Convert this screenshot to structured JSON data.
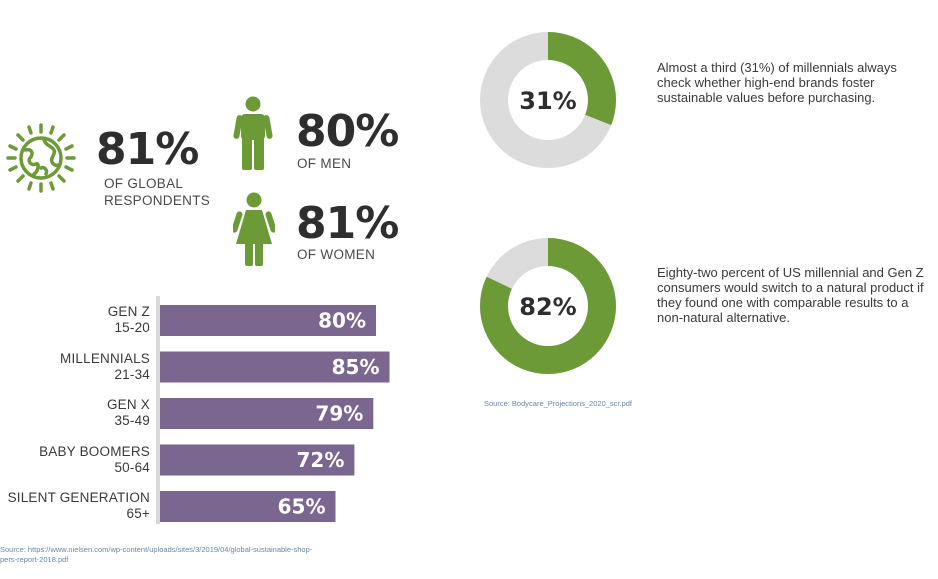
{
  "colors": {
    "green": "#6c9a36",
    "purple": "#7b6690",
    "donut_gray": "#dcdcdc",
    "axis_gray": "#d8d8d8"
  },
  "global": {
    "icon": "globe-icon",
    "value": "81%",
    "label_line1": "OF GLOBAL",
    "label_line2": "RESPONDENTS"
  },
  "men": {
    "icon": "man-icon",
    "value": "80%",
    "label": "OF MEN"
  },
  "women": {
    "icon": "woman-icon",
    "value": "81%",
    "label": "OF WOMEN"
  },
  "bar_source_line1": "Source: https://www.nielsen.com/wp-content/uploads/sites/3/2019/04/global-sustainable-shop-",
  "bar_source_line2": "pers-report-2018.pdf",
  "donuts": [
    {
      "center_label": "31%",
      "text": "Almost a third (31%) of millennials always check whether high-end brands foster sustainable values before purchasing."
    },
    {
      "center_label": "82%",
      "text": "Eighty-two percent of US millennial and Gen Z consumers would switch to a natural product if they found one with comparable results to a non-natural alternative."
    }
  ],
  "donut_source": "Source: Bodycare_Projections_2020_scr.pdf",
  "chart_data": [
    {
      "type": "bar",
      "orientation": "horizontal",
      "categories": [
        [
          "GEN Z",
          "15-20"
        ],
        [
          "MILLENNIALS",
          "21-34"
        ],
        [
          "GEN X",
          "35-49"
        ],
        [
          "BABY BOOMERS",
          "50-64"
        ],
        [
          "SILENT GENERATION",
          "65+"
        ]
      ],
      "values": [
        80,
        85,
        79,
        72,
        65
      ],
      "value_labels": [
        "80%",
        "85%",
        "79%",
        "72%",
        "65%"
      ],
      "xlim": [
        0,
        100
      ],
      "grid": false
    },
    {
      "type": "pie",
      "variant": "donut",
      "values": [
        31,
        69
      ]
    },
    {
      "type": "pie",
      "variant": "donut",
      "values": [
        82,
        18
      ]
    }
  ]
}
